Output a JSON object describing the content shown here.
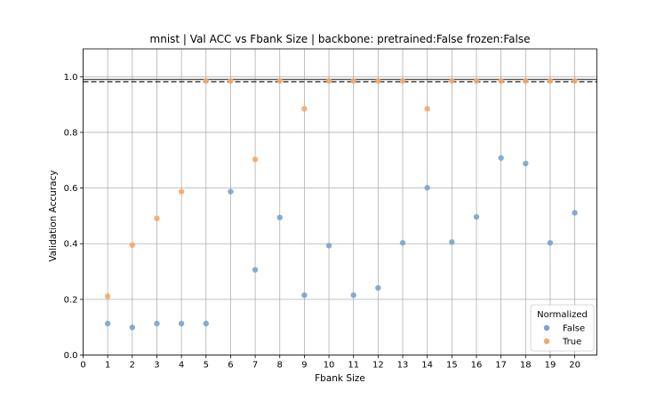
{
  "chart_data": {
    "type": "scatter",
    "title": "mnist | Val ACC vs Fbank Size | backbone: pretrained:False frozen:False",
    "xlabel": "Fbank Size",
    "ylabel": "Validation Accuracy",
    "xlim": [
      0,
      20.9
    ],
    "ylim": [
      0,
      1.1
    ],
    "xticks": [
      0,
      1,
      2,
      3,
      4,
      5,
      6,
      7,
      8,
      9,
      10,
      11,
      12,
      13,
      14,
      15,
      16,
      17,
      18,
      19,
      20
    ],
    "yticks": [
      0.0,
      0.2,
      0.4,
      0.6,
      0.8,
      1.0
    ],
    "ytick_labels": [
      "0.0",
      "0.2",
      "0.4",
      "0.6",
      "0.8",
      "1.0"
    ],
    "grid": true,
    "legend": {
      "title": "Normalized",
      "placement": "lower-right"
    },
    "reference_lines": [
      {
        "y": 0.99,
        "style": "solid",
        "color": "#555555"
      },
      {
        "y": 0.982,
        "style": "dashed",
        "color": "#333333"
      }
    ],
    "series": [
      {
        "name": "False",
        "color": "#7ba3cc",
        "x": [
          1,
          2,
          3,
          4,
          5,
          6,
          7,
          8,
          9,
          10,
          11,
          12,
          13,
          14,
          15,
          16,
          17,
          18,
          19,
          20
        ],
        "y": [
          0.113,
          0.099,
          0.113,
          0.113,
          0.113,
          0.587,
          0.306,
          0.494,
          0.215,
          0.393,
          0.215,
          0.241,
          0.403,
          0.601,
          0.406,
          0.496,
          0.708,
          0.688,
          0.403,
          0.511
        ]
      },
      {
        "name": "True",
        "color": "#f3a86b",
        "x": [
          1,
          2,
          3,
          4,
          5,
          6,
          7,
          8,
          9,
          10,
          11,
          12,
          13,
          14,
          15,
          16,
          17,
          18,
          19,
          20
        ],
        "y": [
          0.211,
          0.395,
          0.491,
          0.587,
          0.985,
          0.985,
          0.703,
          0.985,
          0.885,
          0.985,
          0.985,
          0.985,
          0.985,
          0.885,
          0.985,
          0.985,
          0.985,
          0.985,
          0.985,
          0.985
        ]
      }
    ]
  }
}
